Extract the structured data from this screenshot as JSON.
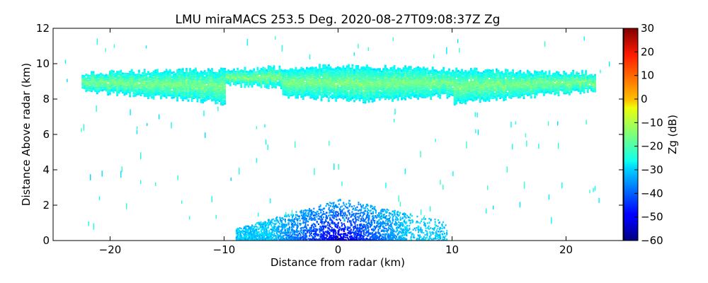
{
  "chart_data": {
    "type": "heatmap",
    "title": "LMU miraMACS 253.5 Deg. 2020-08-27T09:08:37Z  Zg",
    "xlabel": "Distance from radar (km)",
    "ylabel": "Distance Above radar  (km)",
    "xlim": [
      -25,
      25
    ],
    "ylim": [
      0,
      12
    ],
    "x_ticks": [
      -20,
      -10,
      0,
      10,
      20
    ],
    "x_tick_labels": [
      "−20",
      "−10",
      "0",
      "10",
      "20"
    ],
    "y_ticks": [
      0,
      2,
      4,
      6,
      8,
      10,
      12
    ],
    "y_tick_labels": [
      "0",
      "2",
      "4",
      "6",
      "8",
      "10",
      "12"
    ],
    "colorbar": {
      "label": "Zg (dB)",
      "range": [
        -60,
        30
      ],
      "ticks": [
        -60,
        -50,
        -40,
        -30,
        -20,
        -10,
        0,
        10,
        20,
        30
      ],
      "tick_labels": [
        "−60",
        "−50",
        "−40",
        "−30",
        "−20",
        "−10",
        "0",
        "10",
        "20",
        "30"
      ],
      "colormap": "jet"
    },
    "features": [
      {
        "name": "cloud-layer",
        "x_range_km": [
          -22.5,
          22.5
        ],
        "altitude_km": [
          7.6,
          10.0
        ],
        "zg_db_range": [
          -25,
          -10
        ]
      },
      {
        "name": "near-surface-returns",
        "x_range_km": [
          -9,
          9.5
        ],
        "altitude_km": [
          0,
          2.5
        ],
        "zg_db_range": [
          -55,
          -25
        ]
      }
    ]
  }
}
